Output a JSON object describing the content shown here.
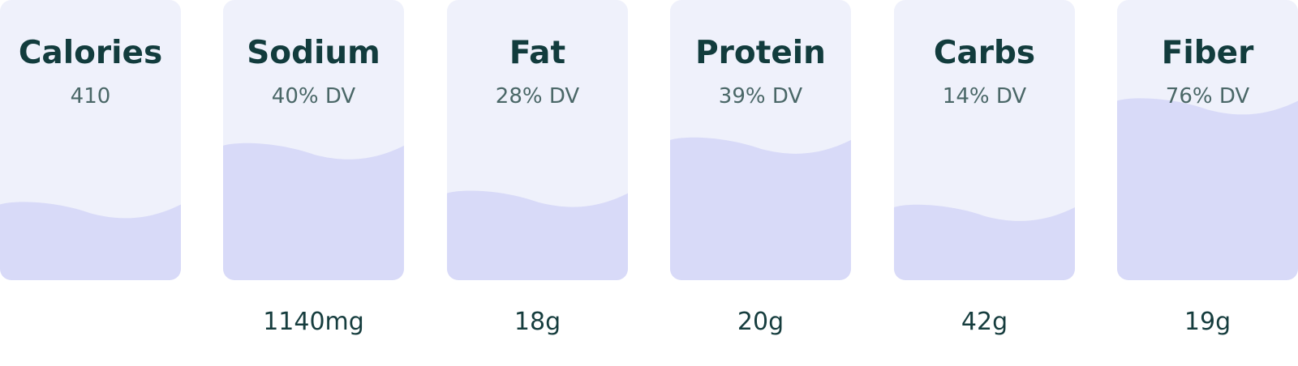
{
  "colors": {
    "card_background": "#eff1fb",
    "fill": "#d8daf8",
    "heading": "#123c3d",
    "subtext": "#4a6767"
  },
  "nutrients": [
    {
      "name": "Calories",
      "dv_label": "410",
      "amount": "",
      "fill_fraction": 0.25
    },
    {
      "name": "Sodium",
      "dv_label": "40% DV",
      "amount": "1140mg",
      "fill_fraction": 0.46
    },
    {
      "name": "Fat",
      "dv_label": "28% DV",
      "amount": "18g",
      "fill_fraction": 0.29
    },
    {
      "name": "Protein",
      "dv_label": "39% DV",
      "amount": "20g",
      "fill_fraction": 0.48
    },
    {
      "name": "Carbs",
      "dv_label": "14% DV",
      "amount": "42g",
      "fill_fraction": 0.24
    },
    {
      "name": "Fiber",
      "dv_label": "76% DV",
      "amount": "19g",
      "fill_fraction": 0.62
    }
  ]
}
